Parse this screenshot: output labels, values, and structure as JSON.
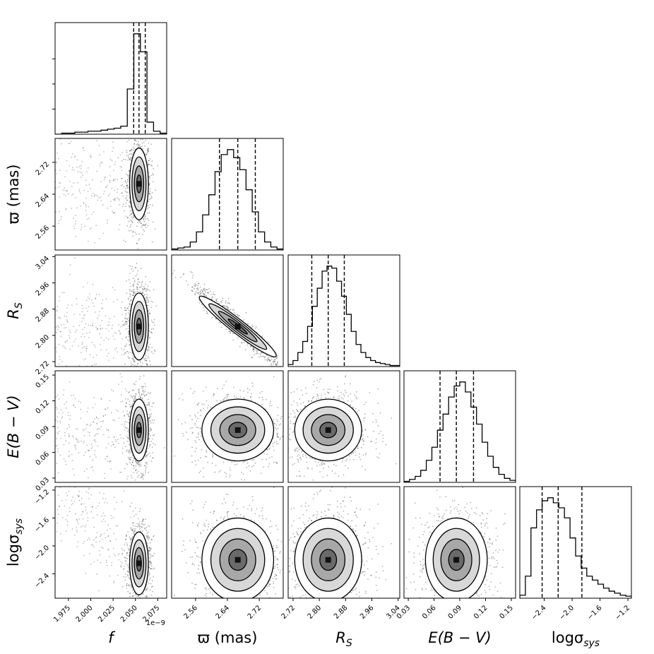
{
  "chart_data": {
    "type": "corner",
    "offset_label": "1e−9",
    "parameters": [
      {
        "id": "f",
        "label": {
          "main": "f",
          "sub": "",
          "italic": true
        },
        "range": [
          1.96,
          2.085
        ],
        "ticks": [
          "1.975",
          "2.000",
          "2.025",
          "2.050",
          "2.075"
        ],
        "tick_values": [
          1.975,
          2.0,
          2.025,
          2.05,
          2.075
        ],
        "quantiles": [
          2.048,
          2.054,
          2.061
        ]
      },
      {
        "id": "parallax",
        "label": {
          "main": "ϖ (mas)",
          "sub": "",
          "italic": false
        },
        "range": [
          2.5,
          2.78
        ],
        "ticks": [
          "2.56",
          "2.64",
          "2.72"
        ],
        "tick_values": [
          2.56,
          2.64,
          2.72
        ],
        "quantiles": [
          2.62,
          2.666,
          2.71
        ]
      },
      {
        "id": "RS",
        "label": {
          "main": "R",
          "sub": "S",
          "italic": true
        },
        "range": [
          2.705,
          3.045
        ],
        "ticks": [
          "2.72",
          "2.80",
          "2.88",
          "2.96",
          "3.04"
        ],
        "tick_values": [
          2.72,
          2.8,
          2.88,
          2.96,
          3.04
        ],
        "quantiles": [
          2.777,
          2.827,
          2.876
        ]
      },
      {
        "id": "EBV",
        "label": {
          "main": "E(B − V)",
          "sub": "",
          "italic": true
        },
        "range": [
          0.025,
          0.155
        ],
        "ticks": [
          "0.03",
          "0.06",
          "0.09",
          "0.12",
          "0.15"
        ],
        "tick_values": [
          0.03,
          0.06,
          0.09,
          0.12,
          0.15
        ],
        "quantiles": [
          0.067,
          0.086,
          0.106
        ]
      },
      {
        "id": "logsigma",
        "label": {
          "main": "logσ",
          "sub": "sys",
          "italic": false
        },
        "range": [
          -2.75,
          -1.15
        ],
        "ticks": [
          "−2.4",
          "−2.0",
          "−1.6",
          "−1.2"
        ],
        "tick_values": [
          -2.4,
          -2.0,
          -1.6,
          -1.2
        ],
        "quantiles": [
          -2.43,
          -2.2,
          -1.86
        ]
      }
    ],
    "histograms": [
      [
        0,
        1,
        1,
        2,
        2,
        3,
        3,
        4,
        5,
        6,
        8,
        45,
        100,
        82,
        12,
        3,
        1
      ],
      [
        1,
        2,
        3,
        8,
        18,
        35,
        55,
        78,
        95,
        100,
        92,
        80,
        60,
        38,
        18,
        8,
        3,
        1
      ],
      [
        2,
        6,
        14,
        25,
        40,
        60,
        78,
        95,
        100,
        98,
        85,
        70,
        52,
        35,
        22,
        14,
        9,
        6,
        4,
        3,
        2,
        1,
        1
      ],
      [
        1,
        3,
        6,
        12,
        22,
        35,
        52,
        68,
        85,
        96,
        100,
        90,
        75,
        58,
        40,
        26,
        15,
        8,
        4,
        2
      ],
      [
        3,
        22,
        70,
        88,
        97,
        100,
        95,
        90,
        80,
        60,
        42,
        30,
        22,
        18,
        14,
        10,
        7,
        5,
        3,
        2
      ]
    ],
    "pairs": [
      {
        "row": 1,
        "col": 0,
        "center": [
          2.054,
          2.666
        ],
        "sigma": [
          0.0035,
          0.03
        ],
        "rho": 0.0
      },
      {
        "row": 2,
        "col": 0,
        "center": [
          2.054,
          2.827
        ],
        "sigma": [
          0.0035,
          0.034
        ],
        "rho": 0.0
      },
      {
        "row": 2,
        "col": 1,
        "center": [
          2.666,
          2.827
        ],
        "sigma": [
          0.03,
          0.034
        ],
        "rho": -0.96
      },
      {
        "row": 3,
        "col": 0,
        "center": [
          2.054,
          0.086
        ],
        "sigma": [
          0.0035,
          0.012
        ],
        "rho": 0.0
      },
      {
        "row": 3,
        "col": 1,
        "center": [
          2.666,
          0.086
        ],
        "sigma": [
          0.03,
          0.012
        ],
        "rho": 0.0
      },
      {
        "row": 3,
        "col": 2,
        "center": [
          2.827,
          0.086
        ],
        "sigma": [
          0.034,
          0.012
        ],
        "rho": 0.0
      },
      {
        "row": 4,
        "col": 0,
        "center": [
          2.054,
          -2.25
        ],
        "sigma": [
          0.0035,
          0.15
        ],
        "rho": 0.0
      },
      {
        "row": 4,
        "col": 1,
        "center": [
          2.666,
          -2.2
        ],
        "sigma": [
          0.03,
          0.2
        ],
        "rho": 0.0
      },
      {
        "row": 4,
        "col": 2,
        "center": [
          2.827,
          -2.2
        ],
        "sigma": [
          0.034,
          0.2
        ],
        "rho": 0.0
      },
      {
        "row": 4,
        "col": 3,
        "center": [
          0.086,
          -2.2
        ],
        "sigma": [
          0.012,
          0.2
        ],
        "rho": 0.0
      }
    ],
    "contour_levels_sigma": [
      0.5,
      1.0,
      1.5,
      2.0
    ],
    "colors": {
      "line": "#000000",
      "density_dark": "#111111",
      "points": "#000000"
    }
  }
}
